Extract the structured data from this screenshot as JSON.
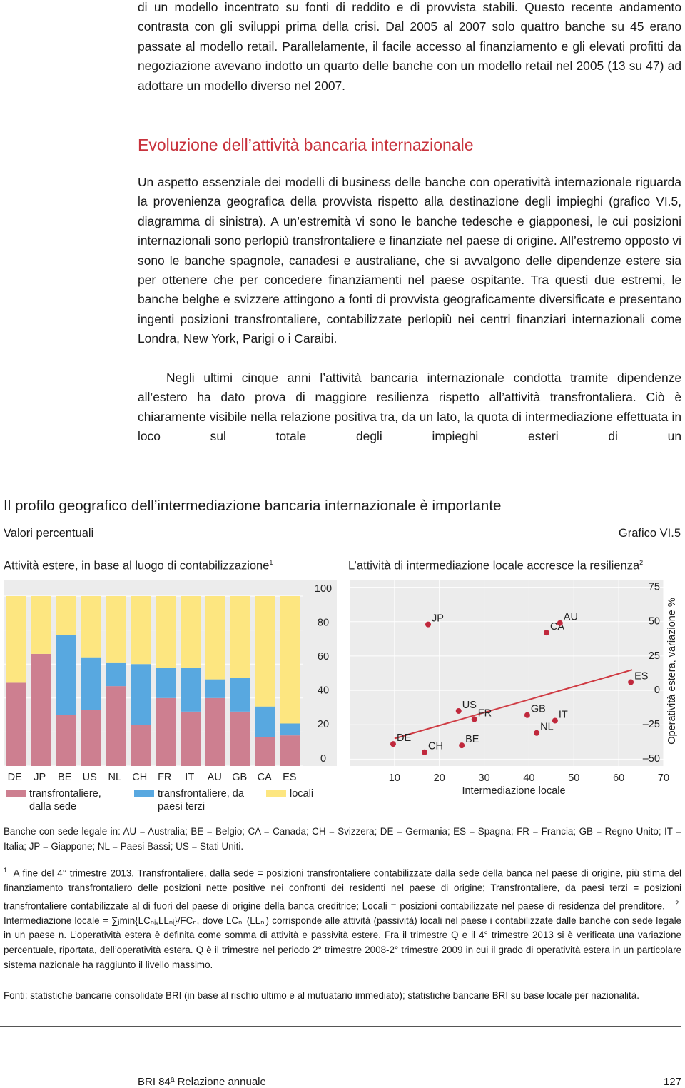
{
  "text": {
    "paragraph_1": "di un modello incentrato su fonti di reddito e di provvista stabili. Questo recente andamento contrasta con gli sviluppi prima della crisi. Dal 2005 al 2007 solo quattro banche su 45 erano passate al modello retail. Parallelamente, il facile accesso al finanziamento e gli elevati profitti da negoziazione avevano indotto un quarto delle banche con un modello retail nel 2005 (13 su 47) ad adottare un modello diverso nel 2007.",
    "heading": "Evoluzione dell’attività bancaria internazionale",
    "paragraph_2": "Un aspetto essenziale dei modelli di business delle banche con operatività internazionale riguarda la provenienza geografica della provvista rispetto alla destinazione degli impieghi (grafico VI.5, diagramma di sinistra). A un’estremità vi sono le banche tedesche e giapponesi, le cui posizioni internazionali sono perlopiù transfrontaliere e finanziate nel paese di origine. All’estremo opposto vi sono le banche spagnole, canadesi e australiane, che si avvalgono delle dipendenze estere sia per ottenere che per concedere finanziamenti nel paese ospitante. Tra questi due estremi, le banche belghe e svizzere attingono a fonti di provvista geograficamente diversificate e presentano ingenti posizioni transfrontaliere, contabilizzate perlopiù nei centri finanziari internazionali come Londra, New York, Parigi o i Caraibi.",
    "paragraph_3": "Negli ultimi cinque anni l’attività bancaria internazionale condotta tramite dipendenze all’estero ha dato prova di maggiore resilienza rispetto all’attività transfrontaliera. Ciò è chiaramente visibile nella relazione positiva tra, da un lato, la quota di intermediazione effettuata in loco sul totale degli impieghi esteri di un"
  },
  "figure": {
    "title": "Il profilo geografico dell’intermediazione bancaria internazionale è importante",
    "subtitle": "Valori percentuali",
    "number": "Grafico VI.5",
    "legend_note": "Banche con sede legale in: AU = Australia; BE = Belgio; CA = Canada; CH = Svizzera; DE = Germania; ES = Spagna; FR = Francia; GB = Regno Unito; IT = Italia; JP = Giappone; NL = Paesi Bassi; US = Stati Uniti.",
    "notes": [
      {
        "marker": "1",
        "text": "A fine del 4° trimestre 2013. Transfrontaliere, dalla sede = posizioni transfrontaliere contabilizzate dalla sede della banca nel paese di origine, più stima del finanziamento transfrontaliero delle posizioni nette positive nei confronti dei residenti nel paese di origine; Transfrontaliere, da paesi terzi = posizioni transfrontaliere contabilizzate al di fuori del paese di origine della banca creditrice; Locali = posizioni contabilizzate nel paese di residenza del prenditore."
      },
      {
        "marker": "2",
        "text": "Intermediazione locale = ∑ᵢmin{LCₙᵢ,LLₙᵢ}/FCₙ, dove LCₙᵢ (LLₙᵢ) corrisponde alle attività (passività) locali nel paese i contabilizzate dalle banche con sede legale in un paese n. L’operatività estera è definita come somma di attività e passività estere. Fra il trimestre Q e il 4° trimestre 2013 si è verificata una variazione percentuale, riportata, dell’operatività estera. Q è il trimestre nel periodo 2° trimestre 2008-2° trimestre 2009 in cui il grado di operatività estera in un particolare sistema nazionale ha raggiunto il livello massimo."
      }
    ],
    "sources": "Fonti: statistiche bancarie consolidate BRI (in base al rischio ultimo e al mutuatario immediato); statistiche bancarie BRI su base locale per nazionalità."
  },
  "chart_data": [
    {
      "type": "stacked-bar",
      "title": "Attività estere, in base al luogo di contabilizzazione",
      "note_ref": "1",
      "categories": [
        "DE",
        "JP",
        "BE",
        "US",
        "NL",
        "CH",
        "FR",
        "IT",
        "AU",
        "GB",
        "CA",
        "ES"
      ],
      "series": [
        {
          "name": "transfrontaliere, dalla sede",
          "color": "#cd7f90",
          "values": [
            49,
            66,
            30,
            33,
            47,
            24,
            40,
            32,
            40,
            32,
            17,
            18
          ]
        },
        {
          "name": "transfrontaliere, da paesi terzi",
          "color": "#58a8e0",
          "values": [
            0,
            0,
            47,
            31,
            14,
            36,
            18,
            26,
            11,
            20,
            18,
            7
          ]
        },
        {
          "name": "locali",
          "color": "#fde680",
          "values": [
            51,
            34,
            23,
            36,
            39,
            40,
            42,
            42,
            49,
            48,
            65,
            75
          ]
        }
      ],
      "ylim": [
        0,
        100
      ],
      "yticks": [
        0,
        20,
        40,
        60,
        80,
        100
      ],
      "grid": true
    },
    {
      "type": "scatter",
      "title": "L’attività di intermediazione locale accresce la resilienza",
      "note_ref": "2",
      "x_label": "Intermediazione locale",
      "y_label": "Operatività estera, variazione %",
      "labels": [
        "DE",
        "JP",
        "CH",
        "US",
        "BE",
        "FR",
        "GB",
        "NL",
        "IT",
        "CA",
        "AU",
        "ES"
      ],
      "x": [
        9.7,
        17.5,
        16.7,
        24.3,
        25,
        27.8,
        39.6,
        41.7,
        45.8,
        43.9,
        46.9,
        62.7
      ],
      "y": [
        -39,
        48,
        -45,
        -15,
        -40,
        -21,
        -18,
        -31,
        -22,
        42,
        49,
        6
      ],
      "color": "#c0283c",
      "trend": {
        "x": [
          10,
          63
        ],
        "y": [
          -35,
          15
        ],
        "color": "#cf3a42"
      },
      "xlim": [
        0,
        70
      ],
      "xticks": [
        10,
        20,
        30,
        40,
        50,
        60,
        70
      ],
      "ylim": [
        -55,
        80
      ],
      "yticks": [
        {
          "value": -50,
          "label": "–50"
        },
        {
          "value": -25,
          "label": "–25"
        },
        0,
        25,
        50,
        75
      ],
      "grid": true
    }
  ],
  "footer": {
    "left": "BRI 84ª Relazione annuale",
    "page": "127"
  }
}
